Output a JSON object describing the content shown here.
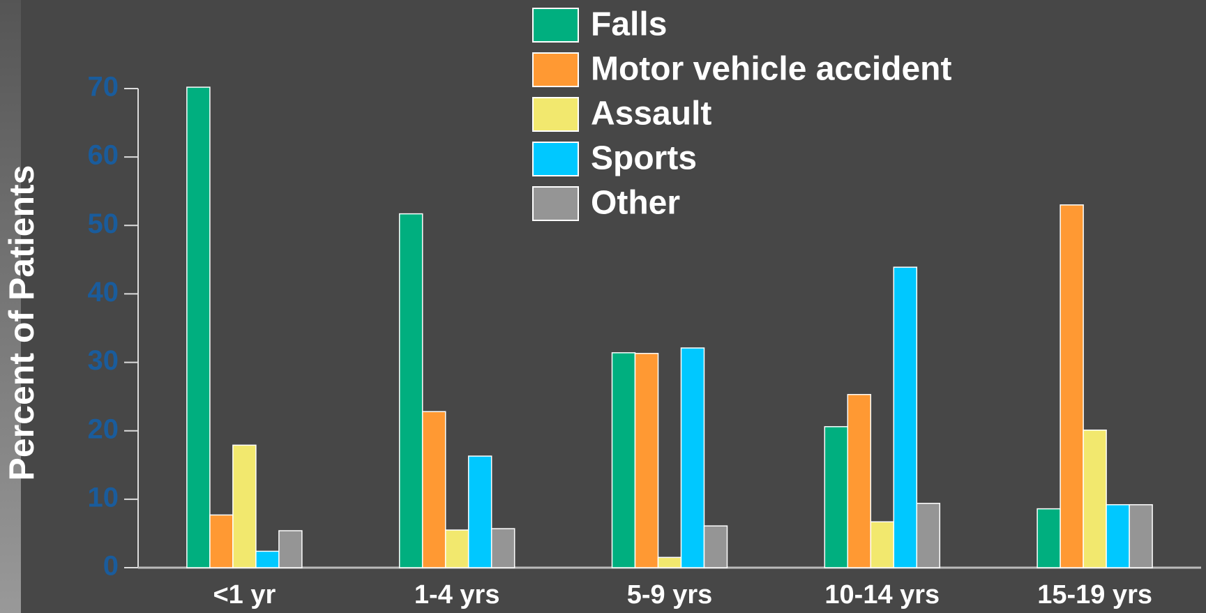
{
  "chart_data": {
    "type": "bar",
    "y_axis_label": "Percent of Patients",
    "categories": [
      "<1 yr",
      "1-4 yrs",
      "5-9 yrs",
      "10-14 yrs",
      "15-19 yrs"
    ],
    "series": [
      {
        "name": "Falls",
        "color": "#00af7f",
        "values": [
          70.2,
          51.7,
          31.4,
          20.6,
          8.6
        ]
      },
      {
        "name": "Motor vehicle accident",
        "color": "#ff9933",
        "values": [
          7.7,
          22.8,
          31.3,
          25.3,
          53
        ]
      },
      {
        "name": "Assault",
        "color": "#f2e86e",
        "values": [
          17.9,
          5.5,
          1.5,
          6.7,
          20.1
        ]
      },
      {
        "name": "Sports",
        "color": "#00c8ff",
        "values": [
          2.4,
          16.3,
          32.1,
          43.9,
          9.2
        ]
      },
      {
        "name": "Other",
        "color": "#959595",
        "values": [
          5.4,
          5.7,
          6.1,
          9.4,
          9.2
        ]
      }
    ],
    "ylim": [
      0,
      70
    ],
    "yticks": [
      0,
      10,
      20,
      30,
      40,
      50,
      60,
      70
    ]
  }
}
